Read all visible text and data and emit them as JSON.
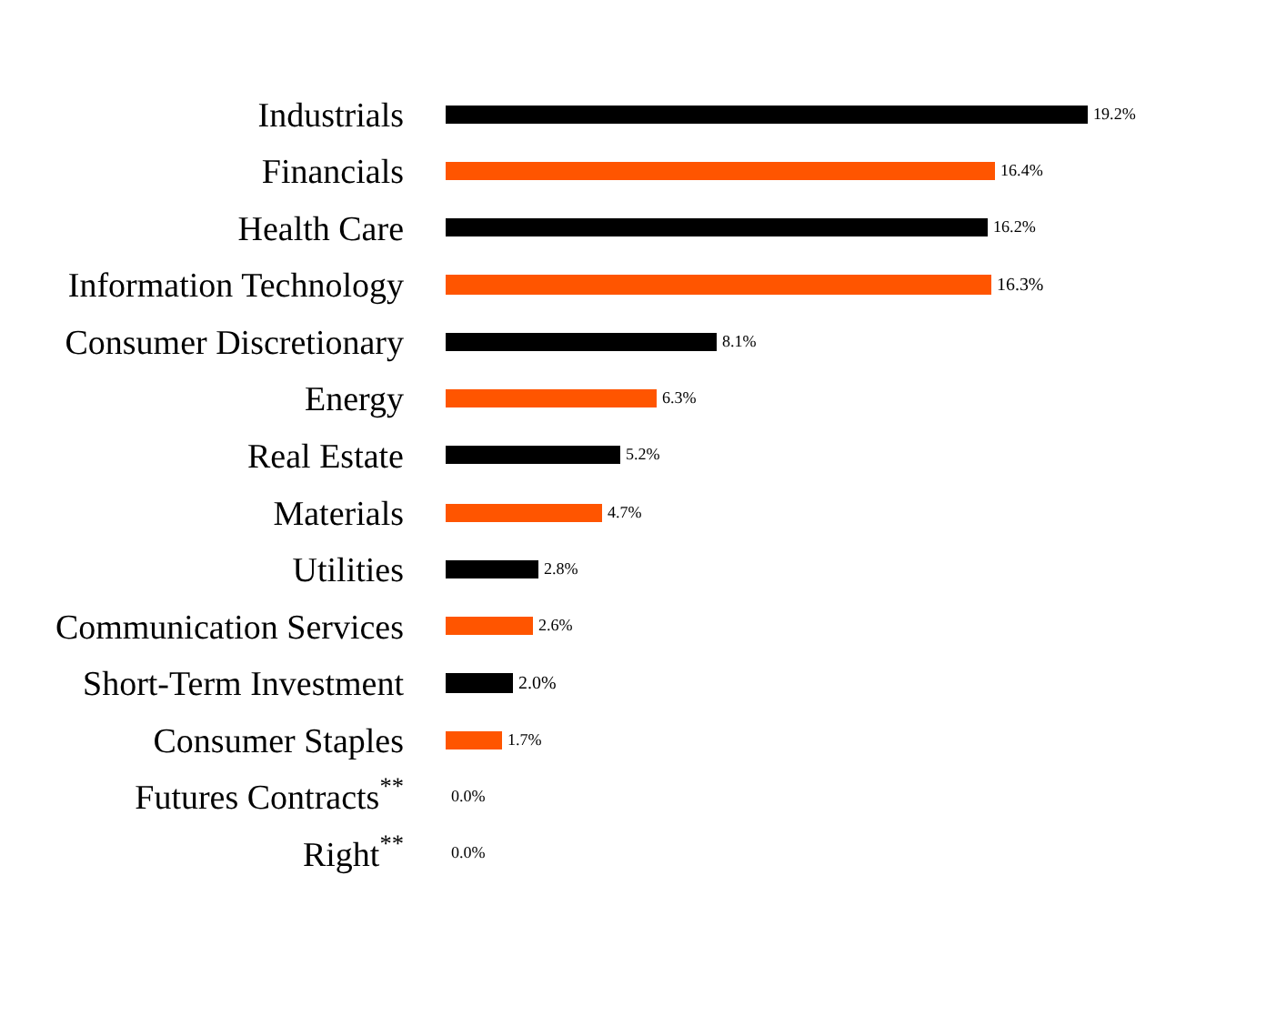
{
  "chart_data": {
    "type": "bar",
    "orientation": "horizontal",
    "categories": [
      "Industrials",
      "Financials",
      "Health Care",
      "Information Technology",
      "Consumer Discretionary",
      "Energy",
      "Real Estate",
      "Materials",
      "Utilities",
      "Communication Services",
      "Short-Term Investment",
      "Consumer Staples",
      "Futures Contracts$^{**}$",
      "Right$^{**}$"
    ],
    "values": [
      19.2,
      16.4,
      16.2,
      16.3,
      8.1,
      6.3,
      5.2,
      4.7,
      2.8,
      2.6,
      2.0,
      1.7,
      0.0,
      0.0
    ],
    "colors": [
      "#000000",
      "#ff5500",
      "#000000",
      "#ff5500",
      "#000000",
      "#ff5500",
      "#000000",
      "#ff5500",
      "#000000",
      "#ff5500",
      "#000000",
      "#ff5500",
      "#000000",
      "#ff5500"
    ],
    "value_labels": [
      "19.2%",
      "16.4%",
      "16.2%",
      "16.3%",
      "8.1%",
      "6.3%",
      "5.2%",
      "4.7%",
      "2.8%",
      "2.6%",
      "2.0%",
      "1.7%",
      "0.0%",
      "0.0%"
    ],
    "grid": false,
    "legend": false
  }
}
